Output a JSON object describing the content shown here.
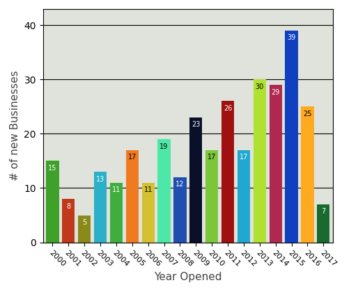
{
  "chart_data": {
    "type": "bar",
    "x_label": "Year Opened",
    "y_label": "# of new Businesses",
    "categories": [
      "2000",
      "2001",
      "2002",
      "2003",
      "2004",
      "2005",
      "2006",
      "2007",
      "2008",
      "2009",
      "2010",
      "2011",
      "2012",
      "2013",
      "2014",
      "2015",
      "2016",
      "2017"
    ],
    "values": [
      15,
      8,
      5,
      13,
      11,
      17,
      11,
      19,
      12,
      23,
      17,
      26,
      17,
      30,
      29,
      39,
      25,
      7
    ],
    "colors": [
      "#3fa02a",
      "#c0391b",
      "#8a8a1a",
      "#2bb0c8",
      "#3fae3f",
      "#f07a20",
      "#d4c030",
      "#4de8a8",
      "#1f4fb0",
      "#0a0f2a",
      "#7ac83a",
      "#a01010",
      "#20a8d0",
      "#b0e030",
      "#b02850",
      "#1040c0",
      "#ffaa20",
      "#1a6a30"
    ],
    "ylim": [
      0,
      43
    ],
    "yticks": [
      0,
      10,
      20,
      30,
      40
    ],
    "grid": true,
    "data_labels": true
  }
}
